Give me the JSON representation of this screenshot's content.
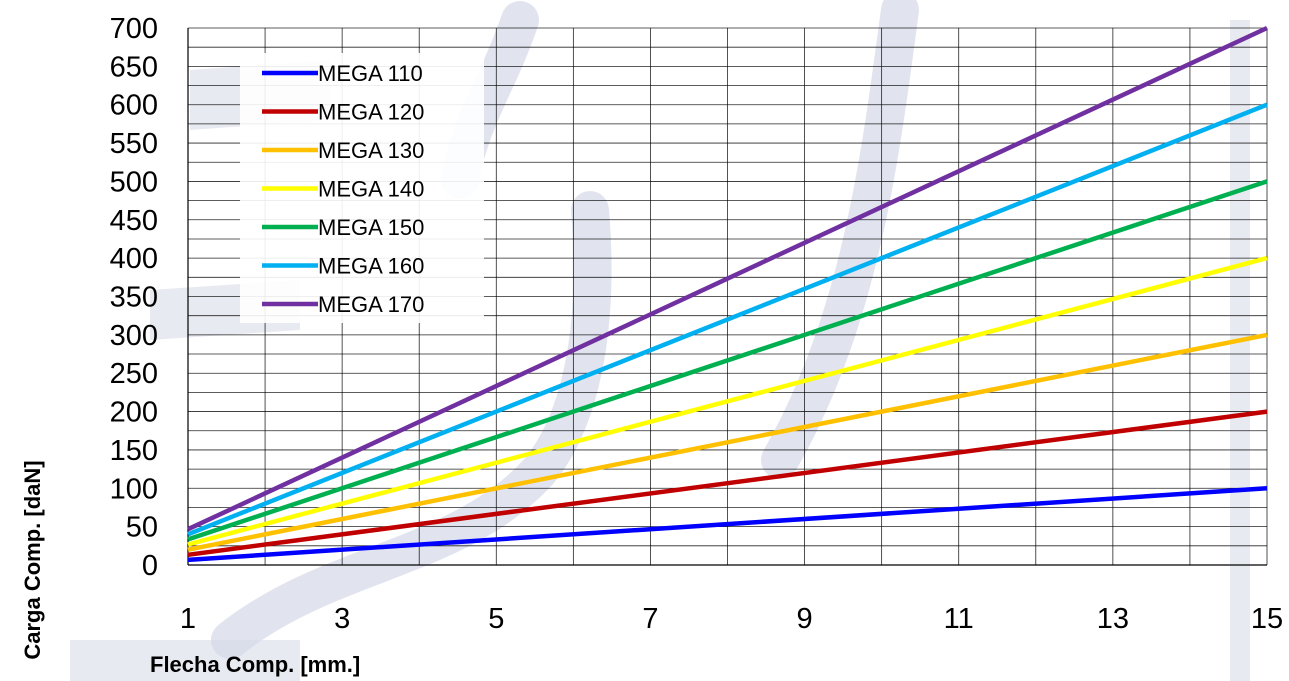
{
  "chart_data": {
    "type": "line",
    "title": "",
    "xlabel": "Flecha Comp. [mm.]",
    "ylabel": "Carga Comp. [daN]",
    "xlim": [
      1,
      15
    ],
    "ylim": [
      0,
      700
    ],
    "x_tick_labels": [
      "1",
      "3",
      "5",
      "7",
      "9",
      "11",
      "13",
      "15"
    ],
    "y_tick_labels": [
      "0",
      "50",
      "100",
      "150",
      "200",
      "250",
      "300",
      "350",
      "400",
      "450",
      "500",
      "550",
      "600",
      "650",
      "700"
    ],
    "grid": true,
    "legend_position": "top-left",
    "series": [
      {
        "name": "MEGA 110",
        "color": "#0000FF",
        "x": [
          1,
          15
        ],
        "values": [
          6.67,
          100
        ]
      },
      {
        "name": "MEGA 120",
        "color": "#C00000",
        "x": [
          1,
          15
        ],
        "values": [
          13.33,
          200
        ]
      },
      {
        "name": "MEGA 130",
        "color": "#FFC000",
        "x": [
          1,
          15
        ],
        "values": [
          20,
          300
        ]
      },
      {
        "name": "MEGA 140",
        "color": "#FFFF00",
        "x": [
          1,
          15
        ],
        "values": [
          26.67,
          400
        ]
      },
      {
        "name": "MEGA 150",
        "color": "#00B050",
        "x": [
          1,
          15
        ],
        "values": [
          33.33,
          500
        ]
      },
      {
        "name": "MEGA 160",
        "color": "#00B0F0",
        "x": [
          1,
          15
        ],
        "values": [
          40,
          600
        ]
      },
      {
        "name": "MEGA 170",
        "color": "#7030A0",
        "x": [
          1,
          15
        ],
        "values": [
          46.67,
          700
        ]
      }
    ]
  }
}
